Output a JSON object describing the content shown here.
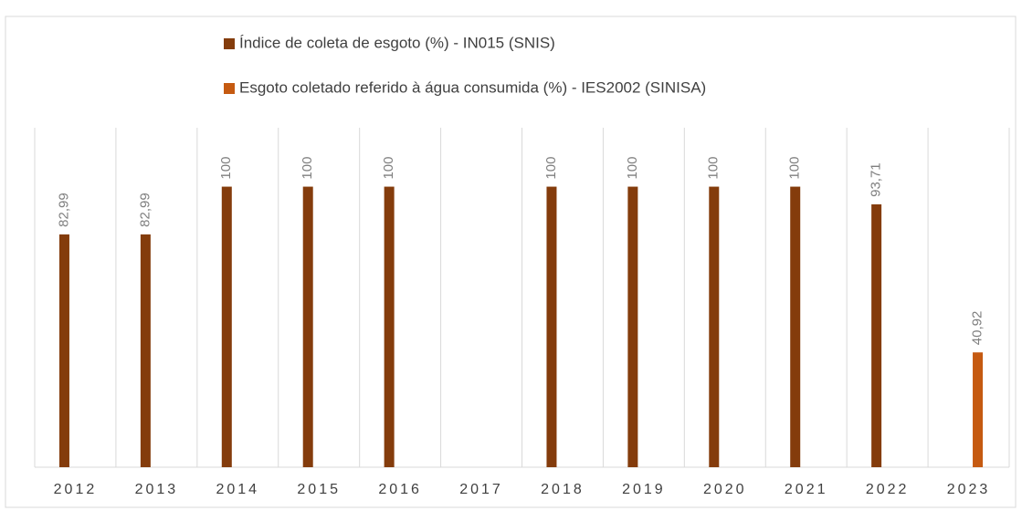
{
  "chart_data": {
    "type": "bar",
    "categories": [
      "2012",
      "2013",
      "2014",
      "2015",
      "2016",
      "2017",
      "2018",
      "2019",
      "2020",
      "2021",
      "2022",
      "2023"
    ],
    "series": [
      {
        "name": "Índice de coleta de esgoto (%) - IN015 (SNIS)",
        "color": "#843c0c",
        "values": [
          82.99,
          82.99,
          100,
          100,
          100,
          null,
          100,
          100,
          100,
          100,
          93.71,
          null
        ],
        "value_labels": [
          "82,99",
          "82,99",
          "100",
          "100",
          "100",
          null,
          "100",
          "100",
          "100",
          "100",
          "93,71",
          null
        ]
      },
      {
        "name": "Esgoto coletado referido à água consumida (%) - IES2002 (SINISA)",
        "color": "#c55a11",
        "values": [
          null,
          null,
          null,
          null,
          null,
          null,
          null,
          null,
          null,
          null,
          null,
          40.92
        ],
        "value_labels": [
          null,
          null,
          null,
          null,
          null,
          null,
          null,
          null,
          null,
          null,
          null,
          "40,92"
        ]
      }
    ],
    "ylim": [
      0,
      121
    ]
  }
}
